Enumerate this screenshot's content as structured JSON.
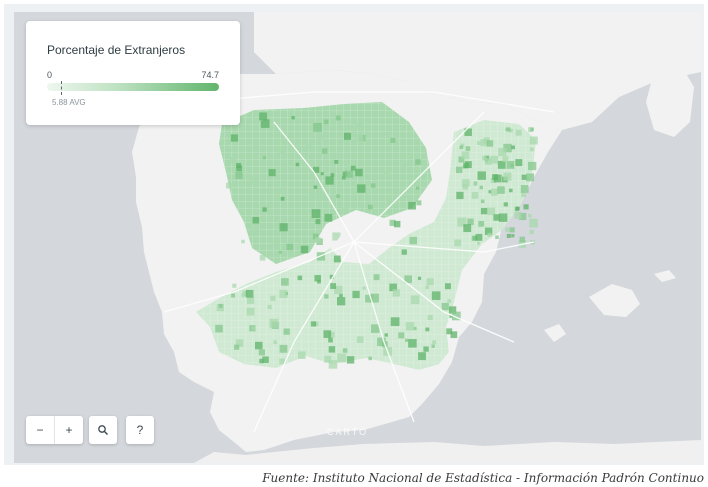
{
  "legend": {
    "title": "Porcentaje de Extranjeros",
    "min": "0",
    "max": "74.7",
    "avg_label": "5.88 AVG",
    "avg_value": 5.88,
    "scale_colors": [
      "#eef7ef",
      "#bfe2c3",
      "#61b56c"
    ]
  },
  "controls": {
    "zoom_out": "−",
    "zoom_in": "+",
    "search_icon": "search-icon",
    "help": "?"
  },
  "map": {
    "attribution": "CARTO",
    "sea_color": "#d4d8dc",
    "land_color": "#f2f2f2",
    "choropleth_colors": [
      "#e6f3e7",
      "#cfe9d2",
      "#a8d8ae",
      "#84c78c",
      "#5fb36a"
    ]
  },
  "caption": "Fuente: Instituto Nacional de Estadística - Información Padrón Continuo"
}
